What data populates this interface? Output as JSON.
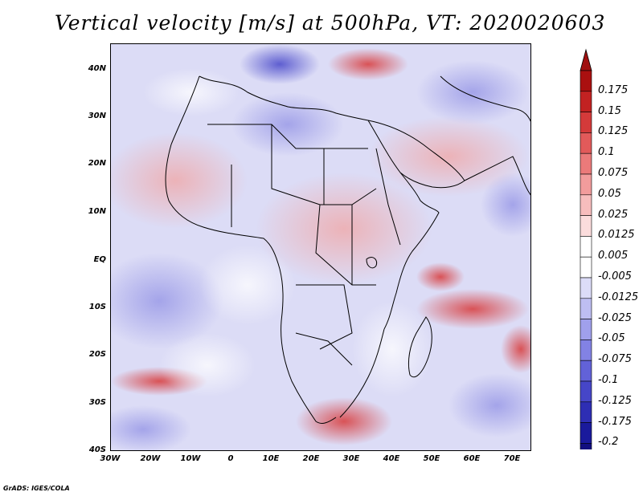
{
  "title": "Vertical velocity [m/s] at 500hPa, VT: 2020020603",
  "credit": "GrADS: IGES/COLA",
  "map": {
    "lat_labels": [
      "40N",
      "30N",
      "20N",
      "10N",
      "EQ",
      "10S",
      "20S",
      "30S",
      "40S"
    ],
    "lon_labels": [
      "30W",
      "20W",
      "10W",
      "0",
      "10E",
      "20E",
      "30E",
      "40E",
      "50E",
      "60E",
      "70E"
    ]
  },
  "colorbar": {
    "levels": [
      "0.175",
      "0.15",
      "0.125",
      "0.1",
      "0.075",
      "0.05",
      "0.025",
      "0.0125",
      "0.005",
      "-0.005",
      "-0.0125",
      "-0.025",
      "-0.05",
      "-0.075",
      "-0.1",
      "-0.125",
      "-0.175",
      "-0.2"
    ],
    "colors": [
      "#aa1010",
      "#c22222",
      "#d43a3a",
      "#e25a5a",
      "#eb7a7a",
      "#f29c9c",
      "#f7bdbd",
      "#fbdcdc",
      "#ffffff",
      "#ffffff",
      "#dcdcf8",
      "#bebef2",
      "#a0a0ec",
      "#8282e4",
      "#6262d8",
      "#4646c8",
      "#2e2eb4",
      "#1a1a9c",
      "#120f80"
    ],
    "top_triangle_color": "#a01010",
    "bottom_triangle_color": "#140c82"
  }
}
